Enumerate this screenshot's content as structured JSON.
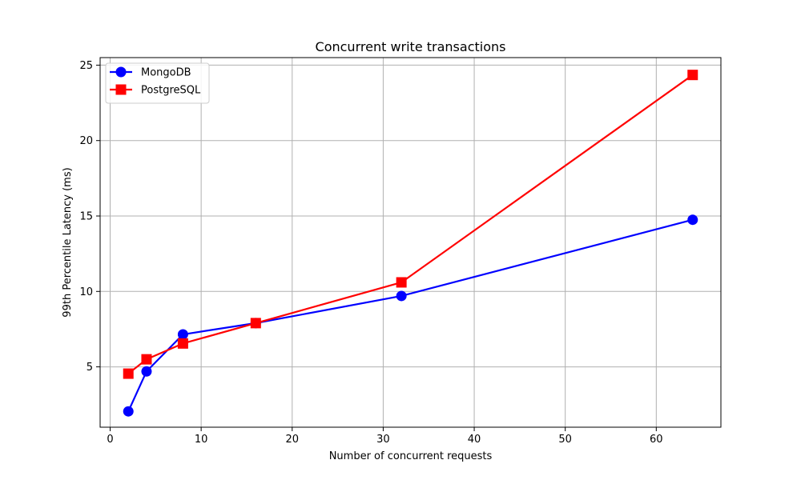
{
  "chart_data": {
    "type": "line",
    "title": "Concurrent write transactions",
    "xlabel": "Number of concurrent requests",
    "ylabel": "99th Percentile Latency (ms)",
    "xlim": [
      -1.1,
      67.1
    ],
    "ylim": [
      1.0,
      25.5
    ],
    "xticks": [
      0,
      10,
      20,
      30,
      40,
      50,
      60
    ],
    "yticks": [
      5,
      10,
      15,
      20,
      25
    ],
    "grid": true,
    "legend_position": "upper-left",
    "series": [
      {
        "name": "MongoDB",
        "color": "#0000ff",
        "marker": "circle",
        "x": [
          2,
          4,
          8,
          16,
          32,
          64
        ],
        "y": [
          2.05,
          4.7,
          7.15,
          7.9,
          9.7,
          14.75
        ]
      },
      {
        "name": "PostgreSQL",
        "color": "#ff0000",
        "marker": "square",
        "x": [
          2,
          4,
          8,
          16,
          32,
          64
        ],
        "y": [
          4.55,
          5.5,
          6.55,
          7.9,
          10.6,
          24.35
        ]
      }
    ]
  }
}
